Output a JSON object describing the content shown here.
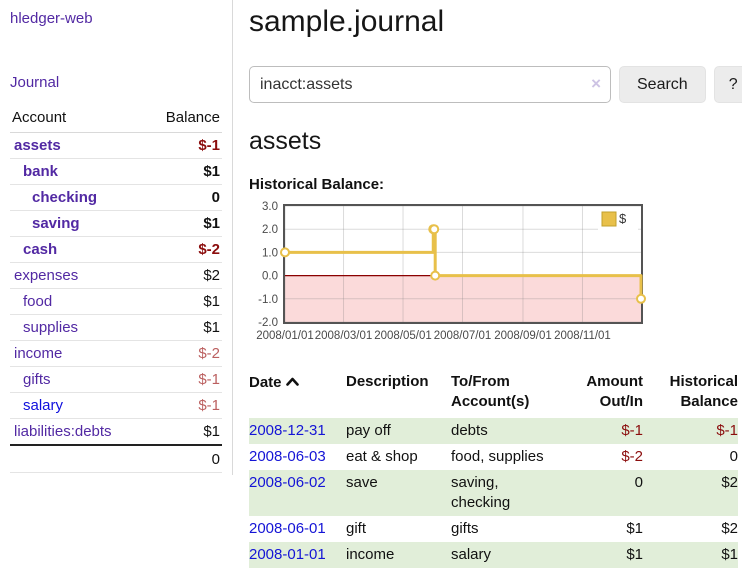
{
  "app": {
    "brand": "hledger-web",
    "nav_journal": "Journal"
  },
  "sidebar": {
    "headers": {
      "account": "Account",
      "balance": "Balance"
    },
    "accounts": [
      {
        "name": "assets",
        "balance": "$-1"
      },
      {
        "name": "bank",
        "balance": "$1"
      },
      {
        "name": "checking",
        "balance": "0"
      },
      {
        "name": "saving",
        "balance": "$1"
      },
      {
        "name": "cash",
        "balance": "$-2"
      },
      {
        "name": "expenses",
        "balance": "$2"
      },
      {
        "name": "food",
        "balance": "$1"
      },
      {
        "name": "supplies",
        "balance": "$1"
      },
      {
        "name": "income",
        "balance": "$-2"
      },
      {
        "name": "gifts",
        "balance": "$-1"
      },
      {
        "name": "salary",
        "balance": "$-1"
      },
      {
        "name": "liabilities:debts",
        "balance": "$1"
      }
    ],
    "total": "0"
  },
  "header": {
    "title": "sample.journal"
  },
  "search": {
    "value": "inacct:assets",
    "clear_icon": "×",
    "search_button": "Search",
    "help_button": "?"
  },
  "account_view": {
    "heading": "assets",
    "chart_title": "Historical Balance:"
  },
  "chart_data": {
    "type": "line",
    "step": true,
    "title": "Historical Balance",
    "series": [
      {
        "name": "$",
        "color": "#e8c04a",
        "points": [
          {
            "date": "2008-01-01",
            "value": 1
          },
          {
            "date": "2008-06-01",
            "value": 2
          },
          {
            "date": "2008-06-02",
            "value": 2
          },
          {
            "date": "2008-06-03",
            "value": 0
          },
          {
            "date": "2008-12-31",
            "value": -1
          }
        ]
      }
    ],
    "x_domain": [
      "2008-01-01",
      "2008-12-31"
    ],
    "ylim": [
      -2,
      3
    ],
    "x_ticks": [
      {
        "date": "2008-01-01",
        "label": "2008/01/01"
      },
      {
        "date": "2008-03-01",
        "label": "2008/03/01"
      },
      {
        "date": "2008-05-01",
        "label": "2008/05/01"
      },
      {
        "date": "2008-07-01",
        "label": "2008/07/01"
      },
      {
        "date": "2008-09-01",
        "label": "2008/09/01"
      },
      {
        "date": "2008-11-01",
        "label": "2008/11/01"
      }
    ],
    "y_ticks": [
      {
        "value": 3,
        "label": "3.0"
      },
      {
        "value": 2,
        "label": "2.0"
      },
      {
        "value": 1,
        "label": "1.0"
      },
      {
        "value": 0,
        "label": "0.0"
      },
      {
        "value": -1,
        "label": "-1.0"
      },
      {
        "value": -2,
        "label": "-2.0"
      }
    ],
    "grid": true,
    "legend": {
      "position": "top-right",
      "label": "$",
      "swatch_color": "#e8c04a"
    },
    "zero_line_color": "#8b0000",
    "negative_region_color": "#fbdada"
  },
  "register": {
    "headers": {
      "date": "Date",
      "description": "Description",
      "accounts": "To/From Account(s)",
      "amount": "Amount Out/In",
      "balance": "Historical Balance"
    },
    "rows": [
      {
        "date": "2008-12-31",
        "description": "pay off",
        "accounts": "debts",
        "amount": "$-1",
        "balance": "$-1"
      },
      {
        "date": "2008-06-03",
        "description": "eat & shop",
        "accounts": "food, supplies",
        "amount": "$-2",
        "balance": "0"
      },
      {
        "date": "2008-06-02",
        "description": "save",
        "accounts": "saving, checking",
        "amount": "0",
        "balance": "$2"
      },
      {
        "date": "2008-06-01",
        "description": "gift",
        "accounts": "gifts",
        "amount": "$1",
        "balance": "$2"
      },
      {
        "date": "2008-01-01",
        "description": "income",
        "accounts": "salary",
        "amount": "$1",
        "balance": "$1"
      }
    ]
  }
}
